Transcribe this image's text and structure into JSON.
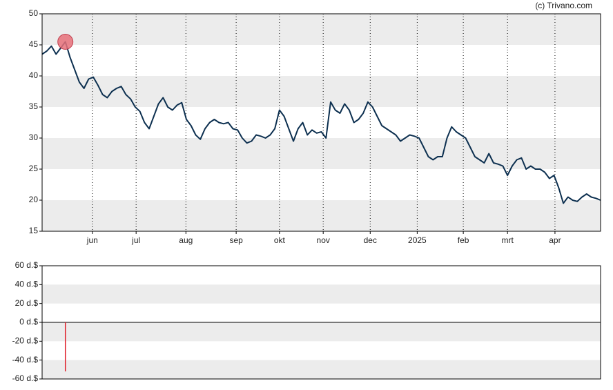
{
  "chart_data": [
    {
      "type": "line",
      "credit": "(c) Trivano.com",
      "xlim": [
        0,
        120
      ],
      "xticks": [
        {
          "value": 10.8,
          "label": "jun"
        },
        {
          "value": 20.2,
          "label": "jul"
        },
        {
          "value": 30.9,
          "label": "aug"
        },
        {
          "value": 41.7,
          "label": "sep"
        },
        {
          "value": 51,
          "label": "okt"
        },
        {
          "value": 60.4,
          "label": "nov"
        },
        {
          "value": 70.5,
          "label": "dec"
        },
        {
          "value": 80.6,
          "label": "2025"
        },
        {
          "value": 90.5,
          "label": "feb"
        },
        {
          "value": 100,
          "label": "mrt"
        },
        {
          "value": 110.2,
          "label": "apr"
        }
      ],
      "ylim": [
        15,
        50
      ],
      "yticks": [
        15,
        20,
        25,
        30,
        35,
        40,
        45,
        50
      ],
      "bands": true,
      "series": [
        {
          "color": "#0d3050",
          "values": [
            43.5,
            44,
            44.8,
            43.5,
            44.5,
            45.5,
            43,
            41,
            39,
            38,
            39.5,
            39.8,
            38.5,
            37,
            36.5,
            37.5,
            38,
            38.3,
            37,
            36.3,
            35,
            34.3,
            32.5,
            31.5,
            33.5,
            35.5,
            36.5,
            35,
            34.5,
            35.3,
            35.7,
            33,
            32,
            30.5,
            29.8,
            31.5,
            32.5,
            33,
            32.5,
            32.3,
            32.5,
            31.5,
            31.3,
            30,
            29.2,
            29.5,
            30.5,
            30.3,
            30,
            30.5,
            31.5,
            34.5,
            33.5,
            31.5,
            29.5,
            31.5,
            32.5,
            30.5,
            31.3,
            30.8,
            31,
            30,
            35.8,
            34.5,
            34,
            35.5,
            34.5,
            32.5,
            33,
            34,
            35.8,
            35,
            33.5,
            32,
            31.5,
            31,
            30.5,
            29.5,
            30,
            30.5,
            30.3,
            30,
            28.5,
            27,
            26.5,
            27,
            27,
            30,
            31.8,
            31,
            30.5,
            30,
            28.5,
            27,
            26.5,
            26,
            27.5,
            26,
            25.8,
            25.5,
            24,
            25.5,
            26.5,
            26.8,
            25,
            25.5,
            25,
            25,
            24.5,
            23.5,
            24,
            22,
            19.5,
            20.5,
            20,
            19.8,
            20.5,
            21,
            20.5,
            20.3,
            20
          ]
        }
      ],
      "marker": {
        "x": 5,
        "value": 45.5,
        "color": "#e8717a"
      }
    },
    {
      "type": "bar",
      "xlim": [
        0,
        120
      ],
      "ylim": [
        -60,
        60
      ],
      "bands": true,
      "yticks": [
        {
          "value": -60,
          "label": "-60 d.$"
        },
        {
          "value": -40,
          "label": "-40 d.$"
        },
        {
          "value": -20,
          "label": "-20 d.$"
        },
        {
          "value": 0,
          "label": "0 d.$"
        },
        {
          "value": 20,
          "label": "20 d.$"
        },
        {
          "value": 40,
          "label": "40 d.$"
        },
        {
          "value": 60,
          "label": "60 d.$"
        }
      ],
      "x": [
        5
      ],
      "values": [
        -52
      ],
      "color": "#e0202a"
    }
  ]
}
